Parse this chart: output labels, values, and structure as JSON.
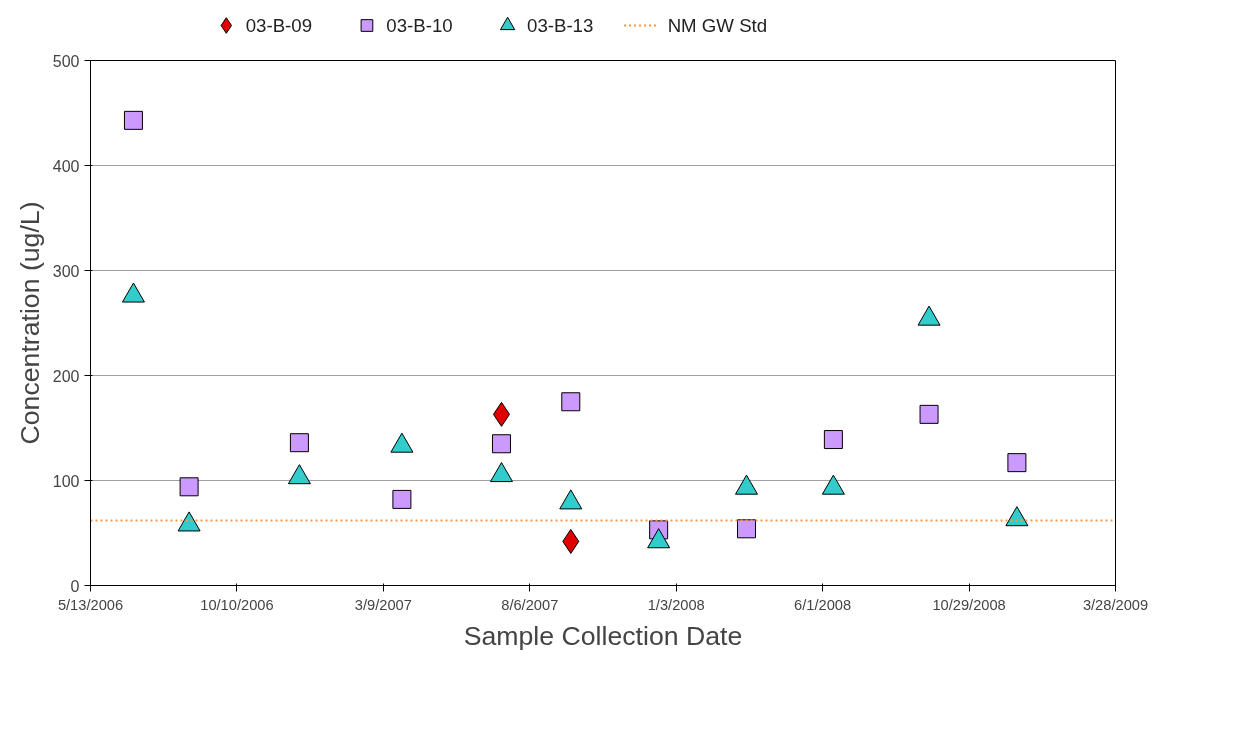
{
  "chart_data": {
    "type": "scatter",
    "xlabel": "Sample Collection Date",
    "ylabel": "Concentration (ug/L)",
    "series": [
      {
        "name": "03-B-09",
        "color": "#e00000",
        "marker": "diamond",
        "x": [
          "2007-07-08",
          "2007-09-17"
        ],
        "values": [
          163,
          42
        ]
      },
      {
        "name": "03-B-10",
        "color": "#cc99ff",
        "marker": "square",
        "x": [
          "2006-06-26",
          "2006-08-22",
          "2006-12-13",
          "2007-03-28",
          "2007-07-08",
          "2007-09-17",
          "2007-12-16",
          "2008-03-15",
          "2008-06-12",
          "2008-09-18",
          "2008-12-17"
        ],
        "values": [
          443,
          94,
          136,
          82,
          135,
          175,
          53,
          54,
          139,
          163,
          117
        ]
      },
      {
        "name": "03-B-13",
        "color": "#33cccc",
        "marker": "triangle",
        "x": [
          "2006-06-26",
          "2006-08-22",
          "2006-12-13",
          "2007-03-28",
          "2007-07-08",
          "2007-09-17",
          "2007-12-16",
          "2008-03-15",
          "2008-06-12",
          "2008-09-18",
          "2008-12-17"
        ],
        "values": [
          276,
          58,
          103,
          133,
          105,
          79,
          42,
          93,
          93,
          254,
          63
        ]
      }
    ],
    "ref_lines": [
      {
        "axis": "y",
        "value": 62,
        "label": "NM GW Std",
        "color": "#f79646",
        "line_style": "dotted"
      }
    ],
    "xlim": [
      "2006-05-13",
      "2009-03-28"
    ],
    "xticks": [
      {
        "value": "2006-05-13",
        "label": "5/13/2006"
      },
      {
        "value": "2006-10-10",
        "label": "10/10/2006"
      },
      {
        "value": "2007-03-09",
        "label": "3/9/2007"
      },
      {
        "value": "2007-08-06",
        "label": "8/6/2007"
      },
      {
        "value": "2008-01-03",
        "label": "1/3/2008"
      },
      {
        "value": "2008-06-01",
        "label": "6/1/2008"
      },
      {
        "value": "2008-10-29",
        "label": "10/29/2008"
      },
      {
        "value": "2009-03-28",
        "label": "3/28/2009"
      }
    ],
    "ylim": [
      0,
      500
    ],
    "yticks": [
      0,
      100,
      200,
      300,
      400,
      500
    ],
    "grid": "y",
    "legend": "top"
  }
}
